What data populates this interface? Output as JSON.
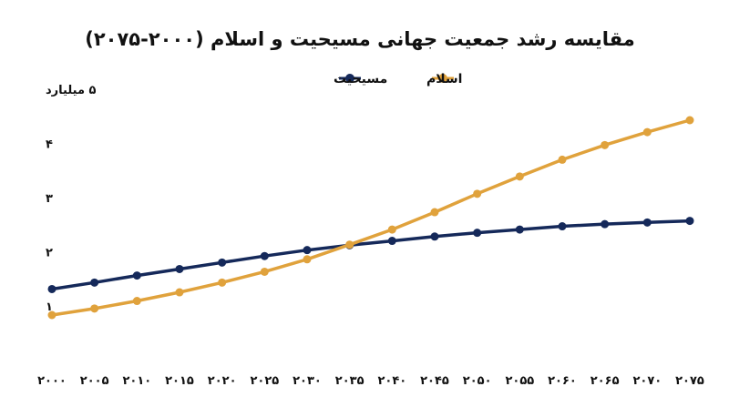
{
  "chart_data": {
    "type": "line",
    "title": "مقایسه رشد جمعیت جهانی مسیحیت و اسلام (۲۰۰۰-۲۰۷۵)",
    "x": [
      "۲۰۰۰",
      "۲۰۰۵",
      "۲۰۱۰",
      "۲۰۱۵",
      "۲۰۲۰",
      "۲۰۲۵",
      "۲۰۳۰",
      "۲۰۳۵",
      "۲۰۴۰",
      "۲۰۴۵",
      "۲۰۵۰",
      "۲۰۵۵",
      "۲۰۶۰",
      "۲۰۶۵",
      "۲۰۷۰",
      "۲۰۷۵"
    ],
    "yticks": [
      {
        "value": 1,
        "label": "۱"
      },
      {
        "value": 2,
        "label": "۲"
      },
      {
        "value": 3,
        "label": "۳"
      },
      {
        "value": 4,
        "label": "۴"
      },
      {
        "value": 5,
        "label": "۵ میلیارد"
      }
    ],
    "ylim": [
      0.5,
      5
    ],
    "legend_position": "top-center",
    "series": [
      {
        "name": "مسیحیت",
        "color": "#15295a",
        "values": [
          1.48,
          1.6,
          1.73,
          1.85,
          1.97,
          2.09,
          2.2,
          2.29,
          2.37,
          2.45,
          2.52,
          2.58,
          2.64,
          2.68,
          2.71,
          2.74
        ]
      },
      {
        "name": "اسلام",
        "color": "#e0a23c",
        "values": [
          1.0,
          1.12,
          1.26,
          1.42,
          1.6,
          1.8,
          2.03,
          2.3,
          2.58,
          2.9,
          3.24,
          3.56,
          3.87,
          4.14,
          4.38,
          4.6
        ]
      }
    ]
  }
}
